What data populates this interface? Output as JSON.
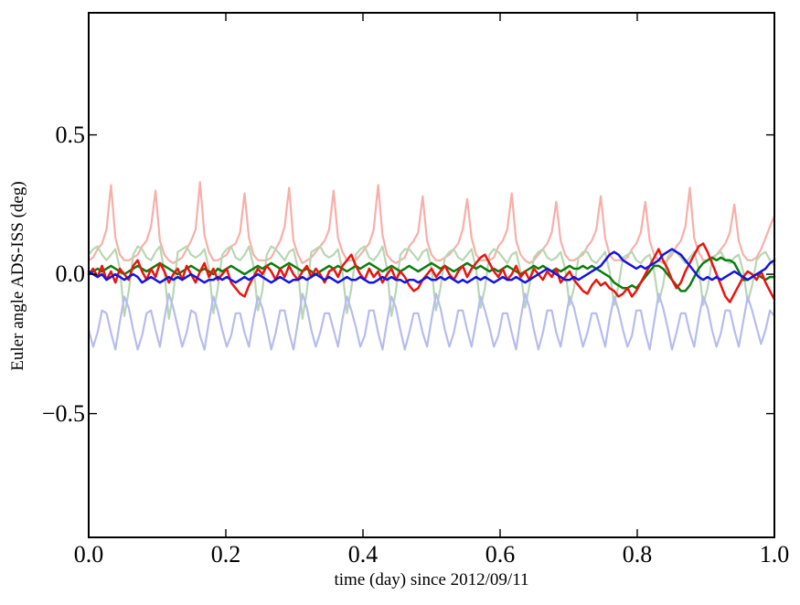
{
  "figure": {
    "background": "#ffffff",
    "frame_color": "#000000",
    "text_color": "#000000"
  },
  "chart_data": {
    "type": "line",
    "title": "",
    "xlabel": "time (day) since 2012/09/11",
    "ylabel": "Euler angle ADS-ISS (deg)",
    "xlim": [
      0,
      1
    ],
    "ylim": [
      -0.944,
      0.938
    ],
    "grid": false,
    "legend": "none",
    "x_ticks": {
      "values": [
        0,
        0.2,
        0.4,
        0.6,
        0.8,
        1.0
      ],
      "labels": [
        "0.0",
        "0.2",
        "0.4",
        "0.6",
        "0.8",
        "1.0"
      ]
    },
    "y_ticks": {
      "values": [
        0.5,
        0.0,
        -0.5
      ],
      "labels": [
        "0.5",
        "0.0",
        "−0.5"
      ]
    },
    "x_sampling": {
      "start": 0,
      "end": 1,
      "count": 155,
      "unit": "day"
    },
    "series": [
      {
        "name": "pale-red-reference-line",
        "color": "#f7afa9",
        "width": 2.2,
        "values": [
          0.05,
          0.06,
          0.09,
          0.11,
          0.16,
          0.32,
          0.13,
          0.07,
          0.05,
          0.05,
          0.06,
          0.07,
          0.1,
          0.12,
          0.17,
          0.3,
          0.12,
          0.07,
          0.05,
          0.04,
          0.05,
          0.06,
          0.09,
          0.12,
          0.16,
          0.33,
          0.14,
          0.08,
          0.05,
          0.05,
          0.06,
          0.07,
          0.1,
          0.11,
          0.15,
          0.29,
          0.13,
          0.07,
          0.05,
          0.05,
          0.05,
          0.06,
          0.09,
          0.12,
          0.17,
          0.31,
          0.12,
          0.07,
          0.04,
          0.05,
          0.06,
          0.08,
          0.1,
          0.12,
          0.16,
          0.3,
          0.13,
          0.08,
          0.05,
          0.05,
          0.05,
          0.07,
          0.09,
          0.11,
          0.16,
          0.32,
          0.14,
          0.07,
          0.05,
          0.04,
          0.05,
          0.06,
          0.1,
          0.12,
          0.15,
          0.28,
          0.12,
          0.07,
          0.05,
          0.05,
          0.06,
          0.07,
          0.09,
          0.11,
          0.16,
          0.27,
          0.13,
          0.07,
          0.05,
          0.05,
          0.05,
          0.06,
          0.1,
          0.12,
          0.16,
          0.29,
          0.12,
          0.07,
          0.05,
          0.04,
          0.05,
          0.07,
          0.09,
          0.11,
          0.15,
          0.26,
          0.12,
          0.07,
          0.05,
          0.05,
          0.06,
          0.07,
          0.1,
          0.12,
          0.16,
          0.28,
          0.13,
          0.07,
          0.05,
          0.05,
          0.05,
          0.06,
          0.09,
          0.11,
          0.15,
          0.26,
          0.12,
          0.07,
          0.05,
          0.04,
          0.05,
          0.07,
          0.1,
          0.12,
          0.17,
          0.31,
          0.13,
          0.08,
          0.05,
          0.05,
          0.06,
          0.07,
          0.09,
          0.11,
          0.15,
          0.25,
          0.12,
          0.07,
          0.05,
          0.05,
          0.06,
          0.09,
          0.13,
          0.17,
          0.21
        ]
      },
      {
        "name": "pale-green-reference-line",
        "color": "#b7d7b1",
        "width": 2.2,
        "values": [
          0.07,
          0.09,
          0.1,
          0.07,
          0.05,
          0.07,
          0.09,
          0.02,
          -0.15,
          -0.06,
          0.07,
          0.1,
          0.09,
          0.06,
          0.05,
          0.08,
          0.1,
          0.01,
          -0.16,
          -0.07,
          0.08,
          0.09,
          0.1,
          0.07,
          0.06,
          0.07,
          0.09,
          0.02,
          -0.14,
          -0.05,
          0.07,
          0.09,
          0.1,
          0.06,
          0.05,
          0.07,
          0.1,
          0.03,
          -0.13,
          -0.06,
          0.07,
          0.1,
          0.09,
          0.07,
          0.05,
          0.08,
          0.09,
          0.02,
          -0.16,
          -0.06,
          0.08,
          0.09,
          0.1,
          0.07,
          0.06,
          0.07,
          0.09,
          0.01,
          -0.14,
          -0.05,
          0.07,
          0.09,
          0.1,
          0.06,
          0.05,
          0.07,
          0.1,
          0.02,
          -0.15,
          -0.06,
          0.07,
          0.09,
          0.09,
          0.07,
          0.05,
          0.08,
          0.09,
          0.02,
          -0.13,
          -0.05,
          0.06,
          0.08,
          0.09,
          0.06,
          0.05,
          0.07,
          0.09,
          0.02,
          -0.12,
          -0.05,
          0.07,
          0.09,
          0.08,
          0.06,
          0.04,
          0.07,
          0.08,
          0.01,
          -0.12,
          -0.04,
          0.06,
          0.08,
          0.09,
          0.06,
          0.05,
          0.06,
          0.08,
          0.02,
          -0.11,
          -0.05,
          0.06,
          0.08,
          0.08,
          0.05,
          0.04,
          0.06,
          0.08,
          0.01,
          -0.11,
          -0.04,
          0.06,
          0.07,
          0.08,
          0.05,
          0.04,
          0.06,
          0.07,
          0.01,
          -0.1,
          -0.04,
          0.06,
          0.08,
          0.08,
          0.06,
          0.04,
          0.06,
          0.08,
          0.02,
          -0.11,
          -0.05,
          0.05,
          0.07,
          0.08,
          0.05,
          0.04,
          0.06,
          0.07,
          0.01,
          -0.1,
          -0.04,
          0.05,
          0.07,
          0.08,
          0.05,
          0.03
        ]
      },
      {
        "name": "pale-blue-reference-line",
        "color": "#b7bcee",
        "width": 2.2,
        "values": [
          -0.2,
          -0.26,
          -0.21,
          -0.13,
          -0.14,
          -0.21,
          -0.27,
          -0.17,
          -0.08,
          -0.12,
          -0.2,
          -0.27,
          -0.22,
          -0.14,
          -0.13,
          -0.2,
          -0.26,
          -0.16,
          -0.07,
          -0.12,
          -0.19,
          -0.26,
          -0.21,
          -0.13,
          -0.14,
          -0.22,
          -0.27,
          -0.17,
          -0.08,
          -0.13,
          -0.2,
          -0.26,
          -0.22,
          -0.14,
          -0.14,
          -0.21,
          -0.26,
          -0.16,
          -0.08,
          -0.12,
          -0.19,
          -0.27,
          -0.21,
          -0.13,
          -0.13,
          -0.21,
          -0.27,
          -0.17,
          -0.07,
          -0.12,
          -0.2,
          -0.26,
          -0.21,
          -0.14,
          -0.14,
          -0.2,
          -0.26,
          -0.16,
          -0.08,
          -0.13,
          -0.19,
          -0.26,
          -0.22,
          -0.13,
          -0.13,
          -0.21,
          -0.27,
          -0.17,
          -0.08,
          -0.12,
          -0.2,
          -0.27,
          -0.21,
          -0.14,
          -0.14,
          -0.21,
          -0.26,
          -0.16,
          -0.07,
          -0.12,
          -0.2,
          -0.26,
          -0.21,
          -0.13,
          -0.13,
          -0.2,
          -0.26,
          -0.17,
          -0.08,
          -0.13,
          -0.19,
          -0.26,
          -0.22,
          -0.14,
          -0.14,
          -0.21,
          -0.27,
          -0.16,
          -0.07,
          -0.12,
          -0.2,
          -0.27,
          -0.21,
          -0.13,
          -0.13,
          -0.21,
          -0.26,
          -0.17,
          -0.08,
          -0.12,
          -0.19,
          -0.26,
          -0.21,
          -0.14,
          -0.14,
          -0.2,
          -0.26,
          -0.16,
          -0.08,
          -0.13,
          -0.2,
          -0.26,
          -0.22,
          -0.13,
          -0.13,
          -0.21,
          -0.27,
          -0.17,
          -0.07,
          -0.12,
          -0.19,
          -0.27,
          -0.21,
          -0.14,
          -0.14,
          -0.21,
          -0.26,
          -0.16,
          -0.08,
          -0.12,
          -0.2,
          -0.26,
          -0.21,
          -0.13,
          -0.13,
          -0.2,
          -0.26,
          -0.17,
          -0.08,
          -0.13,
          -0.19,
          -0.25,
          -0.2,
          -0.13,
          -0.15
        ]
      },
      {
        "name": "green-measured-line",
        "color": "#0b7d0b",
        "width": 2.5,
        "values": [
          0.0,
          0.01,
          0.02,
          0.01,
          0.02,
          0.03,
          0.02,
          0.01,
          0.0,
          0.01,
          0.02,
          0.03,
          0.02,
          0.01,
          0.02,
          0.03,
          0.04,
          0.03,
          0.02,
          0.01,
          0.0,
          0.01,
          0.02,
          0.03,
          0.02,
          0.01,
          0.02,
          0.01,
          0.0,
          0.02,
          0.01,
          0.02,
          0.03,
          0.02,
          0.01,
          0.0,
          0.01,
          0.02,
          0.03,
          0.02,
          0.03,
          0.04,
          0.03,
          0.02,
          0.03,
          0.04,
          0.03,
          0.02,
          0.01,
          0.02,
          0.01,
          0.0,
          0.01,
          0.02,
          0.03,
          0.02,
          0.03,
          0.02,
          0.01,
          0.02,
          0.03,
          0.02,
          0.03,
          0.04,
          0.03,
          0.02,
          0.01,
          0.02,
          0.03,
          0.02,
          0.01,
          0.02,
          0.03,
          0.02,
          0.01,
          0.02,
          0.03,
          0.04,
          0.03,
          0.02,
          0.03,
          0.02,
          0.01,
          0.02,
          0.03,
          0.04,
          0.03,
          0.02,
          0.03,
          0.02,
          0.01,
          0.02,
          0.01,
          0.02,
          0.03,
          0.02,
          0.01,
          0.0,
          0.01,
          0.02,
          0.03,
          0.02,
          0.03,
          0.02,
          0.01,
          0.02,
          0.01,
          0.02,
          0.03,
          0.02,
          0.02,
          0.03,
          0.02,
          0.03,
          0.02,
          0.01,
          0.0,
          -0.01,
          -0.03,
          -0.04,
          -0.05,
          -0.05,
          -0.04,
          -0.05,
          -0.03,
          -0.01,
          0.01,
          0.03,
          0.03,
          0.02,
          0.0,
          -0.02,
          -0.04,
          -0.06,
          -0.06,
          -0.04,
          -0.01,
          0.02,
          0.04,
          0.05,
          0.06,
          0.05,
          0.06,
          0.05,
          0.05,
          0.04,
          0.01,
          -0.02,
          -0.02,
          -0.01,
          0.0,
          -0.01,
          -0.02,
          -0.01,
          -0.01
        ]
      },
      {
        "name": "red-measured-line",
        "color": "#e8150f",
        "width": 2.5,
        "values": [
          0.0,
          0.02,
          -0.01,
          0.03,
          -0.02,
          0.01,
          -0.03,
          0.02,
          0.0,
          -0.02,
          0.03,
          0.05,
          0.01,
          -0.02,
          0.02,
          -0.01,
          0.04,
          0.01,
          -0.03,
          0.0,
          0.02,
          -0.02,
          0.03,
          0.0,
          -0.03,
          0.01,
          0.04,
          -0.01,
          0.02,
          -0.02,
          0.0,
          0.02,
          -0.03,
          -0.05,
          -0.07,
          -0.08,
          -0.04,
          -0.01,
          0.02,
          0.0,
          0.03,
          0.01,
          -0.02,
          0.02,
          -0.01,
          0.03,
          0.0,
          -0.02,
          0.01,
          0.03,
          -0.01,
          0.02,
          0.0,
          -0.03,
          0.01,
          0.02,
          -0.01,
          0.03,
          0.05,
          0.07,
          0.03,
          0.0,
          -0.02,
          0.02,
          -0.01,
          0.01,
          -0.03,
          0.0,
          0.02,
          -0.02,
          0.01,
          -0.01,
          -0.04,
          -0.06,
          -0.05,
          -0.02,
          0.0,
          0.02,
          -0.01,
          0.01,
          0.03,
          0.0,
          -0.02,
          0.01,
          0.03,
          -0.01,
          0.02,
          0.04,
          0.06,
          0.07,
          0.04,
          0.01,
          -0.01,
          0.02,
          -0.02,
          0.0,
          0.03,
          -0.01,
          0.01,
          -0.02,
          0.02,
          0.0,
          -0.02,
          0.01,
          -0.01,
          0.02,
          -0.03,
          -0.01,
          0.01,
          -0.02,
          -0.04,
          -0.06,
          -0.07,
          -0.04,
          -0.02,
          -0.04,
          -0.03,
          -0.05,
          -0.06,
          -0.08,
          -0.07,
          -0.05,
          -0.08,
          -0.06,
          -0.03,
          0.0,
          0.03,
          0.06,
          0.09,
          0.05,
          0.02,
          -0.02,
          -0.05,
          -0.03,
          0.01,
          0.04,
          0.07,
          0.1,
          0.11,
          0.08,
          0.04,
          0.0,
          -0.04,
          -0.08,
          -0.1,
          -0.07,
          -0.04,
          -0.01,
          0.01,
          0.0,
          -0.02,
          0.01,
          -0.03,
          -0.06,
          -0.09
        ]
      },
      {
        "name": "blue-measured-line",
        "color": "#1414e0",
        "width": 2.5,
        "values": [
          0.01,
          0.0,
          -0.01,
          0.0,
          -0.02,
          -0.01,
          0.0,
          -0.01,
          -0.02,
          -0.01,
          0.0,
          -0.01,
          -0.03,
          -0.02,
          -0.01,
          -0.02,
          -0.03,
          -0.02,
          -0.01,
          -0.02,
          -0.01,
          -0.02,
          -0.01,
          0.0,
          -0.01,
          -0.02,
          -0.03,
          -0.02,
          -0.02,
          -0.01,
          -0.02,
          -0.01,
          -0.02,
          -0.03,
          -0.02,
          -0.01,
          -0.02,
          -0.01,
          0.0,
          -0.01,
          -0.02,
          -0.03,
          -0.02,
          -0.01,
          -0.02,
          -0.03,
          -0.02,
          -0.02,
          -0.01,
          -0.02,
          -0.01,
          0.0,
          -0.01,
          -0.02,
          -0.01,
          -0.02,
          -0.03,
          -0.02,
          -0.01,
          -0.02,
          -0.02,
          -0.01,
          -0.02,
          -0.03,
          -0.03,
          -0.02,
          -0.01,
          -0.02,
          -0.01,
          -0.02,
          -0.02,
          -0.03,
          -0.02,
          -0.02,
          -0.03,
          -0.02,
          -0.01,
          -0.02,
          -0.02,
          -0.01,
          -0.02,
          -0.01,
          -0.02,
          -0.03,
          -0.02,
          -0.03,
          -0.02,
          -0.01,
          -0.02,
          -0.01,
          -0.02,
          -0.03,
          -0.02,
          -0.01,
          -0.02,
          -0.02,
          -0.01,
          -0.02,
          -0.03,
          -0.02,
          -0.01,
          0.0,
          0.01,
          0.02,
          0.01,
          0.0,
          -0.01,
          -0.02,
          -0.02,
          -0.01,
          -0.02,
          -0.01,
          0.0,
          0.01,
          0.02,
          0.03,
          0.05,
          0.07,
          0.08,
          0.07,
          0.05,
          0.04,
          0.03,
          0.02,
          0.03,
          0.02,
          0.03,
          0.04,
          0.05,
          0.07,
          0.08,
          0.09,
          0.08,
          0.07,
          0.05,
          0.03,
          0.01,
          -0.01,
          -0.02,
          -0.01,
          -0.02,
          -0.01,
          -0.02,
          -0.01,
          0.0,
          0.01,
          0.0,
          -0.01,
          -0.02,
          -0.01,
          0.0,
          0.01,
          0.02,
          0.04,
          0.05
        ]
      }
    ]
  }
}
